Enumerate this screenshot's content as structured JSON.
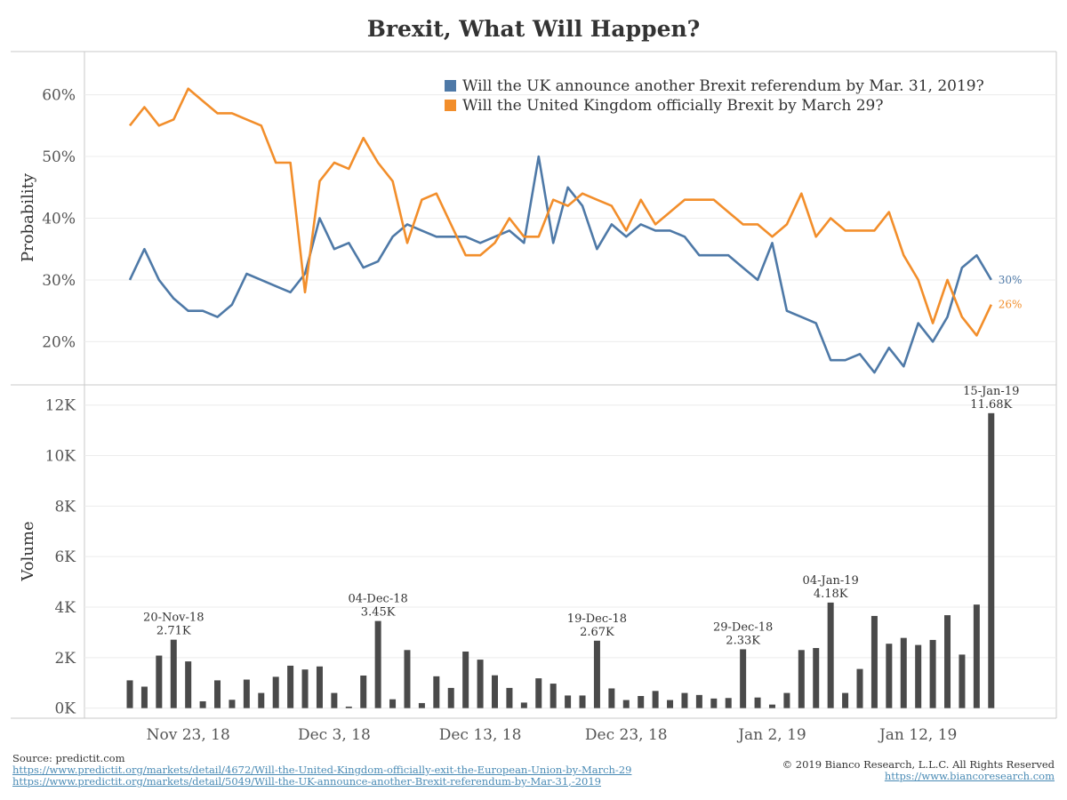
{
  "title": "Brexit, What Will Happen?",
  "colors": {
    "blue": "#4e79a7",
    "orange": "#f28e2b",
    "bar": "#4a4a4a",
    "grid": "#ececec",
    "axis": "#c8c8c8",
    "text": "#555555"
  },
  "chart_data": [
    {
      "type": "line",
      "ylabel": "Probability",
      "ylim": [
        13,
        67
      ],
      "yticks": [
        20,
        30,
        40,
        50,
        60
      ],
      "ytick_labels": [
        "20%",
        "30%",
        "40%",
        "50%",
        "60%"
      ],
      "legend_position": "top-right",
      "series": [
        {
          "name": "Will the UK announce another Brexit referendum by Mar. 31, 2019?",
          "color": "#4e79a7",
          "end_label": "30%",
          "values": [
            30,
            35,
            30,
            27,
            25,
            25,
            24,
            26,
            31,
            30,
            29,
            28,
            31,
            40,
            35,
            36,
            32,
            33,
            37,
            39,
            38,
            37,
            37,
            37,
            36,
            37,
            38,
            36,
            50,
            36,
            45,
            42,
            35,
            39,
            37,
            39,
            38,
            38,
            37,
            34,
            34,
            34,
            32,
            30,
            36,
            25,
            24,
            23,
            17,
            17,
            18,
            15,
            19,
            16,
            23,
            20,
            24,
            32,
            34,
            30
          ]
        },
        {
          "name": "Will the United Kingdom officially Brexit by March 29?",
          "color": "#f28e2b",
          "end_label": "26%",
          "values": [
            55,
            58,
            55,
            56,
            61,
            59,
            57,
            57,
            56,
            55,
            49,
            49,
            28,
            46,
            49,
            48,
            53,
            49,
            46,
            36,
            43,
            44,
            39,
            34,
            34,
            36,
            40,
            37,
            37,
            43,
            42,
            44,
            43,
            42,
            38,
            43,
            39,
            41,
            43,
            43,
            43,
            41,
            39,
            39,
            37,
            39,
            44,
            37,
            40,
            38,
            38,
            38,
            41,
            34,
            30,
            23,
            30,
            24,
            21,
            26
          ]
        }
      ]
    },
    {
      "type": "bar",
      "ylabel": "Volume",
      "ylim": [
        -400,
        12800
      ],
      "yticks": [
        0,
        2000,
        4000,
        6000,
        8000,
        10000,
        12000
      ],
      "ytick_labels": [
        "0K",
        "2K",
        "4K",
        "6K",
        "8K",
        "10K",
        "12K"
      ],
      "xtick_labels": [
        "Nov 23, 18",
        "Dec 3, 18",
        "Dec 13, 18",
        "Dec 23, 18",
        "Jan 2, 19",
        "Jan 12, 19"
      ],
      "xtick_index": [
        4,
        14,
        24,
        34,
        44,
        54
      ],
      "values": [
        1100,
        850,
        2080,
        2710,
        1850,
        270,
        1100,
        330,
        1130,
        600,
        1240,
        1680,
        1530,
        1650,
        600,
        60,
        1290,
        3450,
        350,
        2300,
        200,
        1260,
        800,
        2240,
        1920,
        1300,
        800,
        220,
        1180,
        970,
        500,
        500,
        2670,
        780,
        320,
        480,
        680,
        320,
        600,
        520,
        380,
        400,
        2330,
        420,
        140,
        600,
        2300,
        2380,
        4180,
        600,
        1550,
        3650,
        2550,
        2780,
        2500,
        2700,
        3680,
        2120,
        4100,
        11680
      ],
      "annotations": [
        {
          "index": 3,
          "date": "20-Nov-18",
          "value": "2.71K"
        },
        {
          "index": 17,
          "date": "04-Dec-18",
          "value": "3.45K"
        },
        {
          "index": 32,
          "date": "19-Dec-18",
          "value": "2.67K"
        },
        {
          "index": 42,
          "date": "29-Dec-18",
          "value": "2.33K"
        },
        {
          "index": 48,
          "date": "04-Jan-19",
          "value": "4.18K"
        },
        {
          "index": 59,
          "date": "15-Jan-19",
          "value": "11.68K"
        }
      ]
    }
  ],
  "footer": {
    "source": "Source: predictit.com",
    "link1": "https://www.predictit.org/markets/detail/4672/Will-the-United-Kingdom-officially-exit-the-European-Union-by-March-29",
    "link2": "https://www.predictit.org/markets/detail/5049/Will-the-UK-announce-another-Brexit-referendum-by-Mar-31,-2019",
    "copyright": "© 2019 Bianco Research, L.L.C. All Rights Reserved",
    "website": "https://www.biancoresearch.com"
  }
}
